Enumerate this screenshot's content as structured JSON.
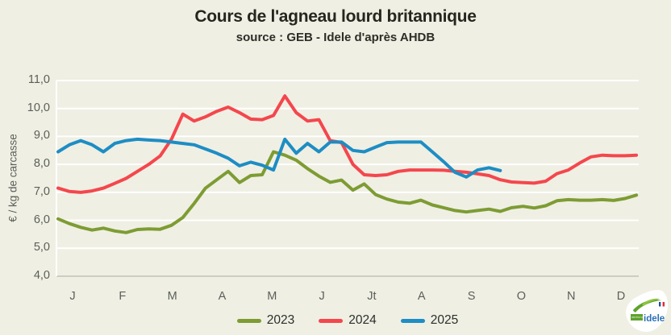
{
  "page": {
    "title": "Cours de l'agneau lourd britannique",
    "subtitle": "source : GEB - Idele d'après AHDB"
  },
  "chart_data": {
    "type": "line",
    "title": "Cours de l'agneau lourd britannique",
    "subtitle": "source : GEB - Idele d'après AHDB",
    "xlabel": "",
    "ylabel": "€ / kg de carcasse",
    "x_unit": "weeks (Jan–Dec)",
    "months": [
      "J",
      "F",
      "M",
      "A",
      "M",
      "J",
      "Jt",
      "A",
      "S",
      "O",
      "N",
      "D"
    ],
    "ylim": [
      4.0,
      11.0
    ],
    "ytick_step": 1.0,
    "ytick_labels": [
      "4,0",
      "5,0",
      "6,0",
      "7,0",
      "8,0",
      "9,0",
      "10,0",
      "11,0"
    ],
    "grid": true,
    "legend_position": "bottom-center",
    "series": [
      {
        "name": "2023",
        "color": "#7d9c33",
        "values": [
          6.05,
          5.88,
          5.75,
          5.65,
          5.72,
          5.62,
          5.56,
          5.67,
          5.69,
          5.68,
          5.82,
          6.1,
          6.6,
          7.15,
          7.45,
          7.75,
          7.35,
          7.6,
          7.63,
          8.45,
          8.33,
          8.15,
          7.85,
          7.58,
          7.36,
          7.44,
          7.08,
          7.3,
          6.92,
          6.76,
          6.65,
          6.61,
          6.72,
          6.55,
          6.45,
          6.35,
          6.3,
          6.35,
          6.4,
          6.32,
          6.45,
          6.5,
          6.44,
          6.52,
          6.7,
          6.74,
          6.72,
          6.72,
          6.74,
          6.71,
          6.78,
          6.9
        ]
      },
      {
        "name": "2024",
        "color": "#f4474d",
        "values": [
          7.15,
          7.03,
          7.0,
          7.05,
          7.15,
          7.32,
          7.5,
          7.75,
          8.0,
          8.3,
          8.9,
          9.8,
          9.55,
          9.7,
          9.9,
          10.05,
          9.85,
          9.62,
          9.6,
          9.75,
          10.45,
          9.85,
          9.55,
          9.6,
          8.85,
          8.78,
          8.0,
          7.63,
          7.6,
          7.63,
          7.75,
          7.8,
          7.8,
          7.8,
          7.79,
          7.75,
          7.72,
          7.66,
          7.6,
          7.45,
          7.37,
          7.35,
          7.33,
          7.4,
          7.67,
          7.8,
          8.05,
          8.27,
          8.33,
          8.31,
          8.31,
          8.33
        ]
      },
      {
        "name": "2025",
        "color": "#1d8dc4",
        "values": [
          8.45,
          8.7,
          8.85,
          8.7,
          8.45,
          8.75,
          8.85,
          8.9,
          8.87,
          8.85,
          8.8,
          8.75,
          8.7,
          8.55,
          8.4,
          8.22,
          7.95,
          8.08,
          7.97,
          7.8,
          8.9,
          8.4,
          8.75,
          8.45,
          8.8,
          8.8,
          8.5,
          8.45,
          8.62,
          8.78,
          8.8,
          8.8,
          8.8,
          8.45,
          8.1,
          7.72,
          7.55,
          7.8,
          7.88,
          7.78
        ]
      }
    ]
  },
  "logo": {
    "name": "idele",
    "institute": "INSTITUT DE L'ÉLEVAGE"
  },
  "colors": {
    "background": "#f0efe4",
    "grid": "#ffffff",
    "axis": "#c2c2b4",
    "title_text": "#26261f",
    "tick_text": "#5b5f58",
    "series_2023": "#7d9c33",
    "series_2024": "#f4474d",
    "series_2025": "#1d8dc4",
    "logo_text": "#2a70b8",
    "logo_leaf": "#5ea32d"
  }
}
